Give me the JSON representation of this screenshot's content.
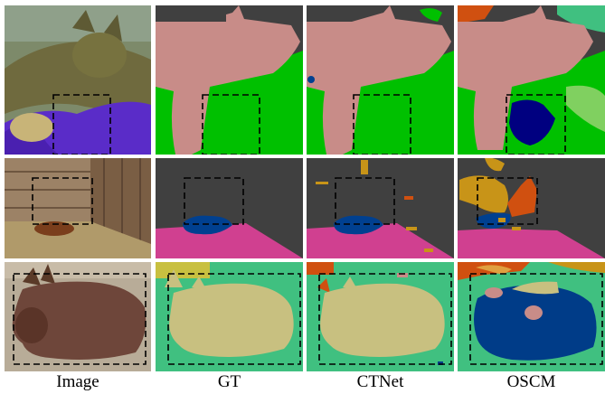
{
  "figure": {
    "columns": [
      {
        "label": "Image"
      },
      {
        "label": "GT"
      },
      {
        "label": "CTNet"
      },
      {
        "label": "OSCM"
      }
    ],
    "rows": [
      {
        "subject": "cat"
      },
      {
        "subject": "calf"
      },
      {
        "subject": "donkey"
      }
    ]
  },
  "colors": {
    "cat_pink": "#c88c88",
    "grass_green": "#00c000",
    "background_gray": "#404040",
    "blanket_blue": "#004090",
    "floor_magenta": "#d04090",
    "orange": "#d05010",
    "golden": "#c89418",
    "teal_green": "#40c080",
    "donkey_khaki": "#c8c080",
    "navy": "#003c88"
  }
}
